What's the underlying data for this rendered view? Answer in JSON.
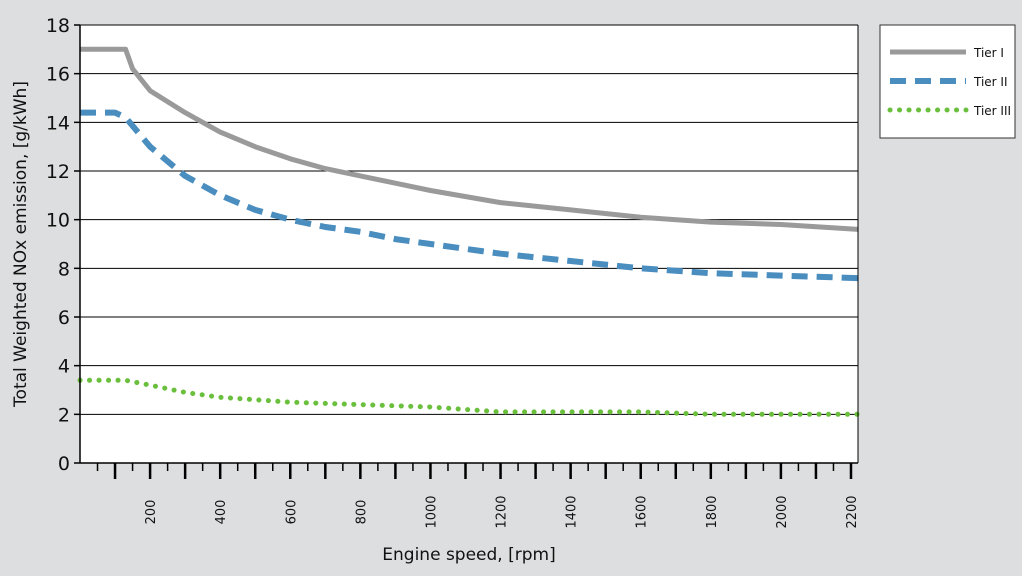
{
  "chart_data": {
    "type": "line",
    "title": "",
    "xlabel": "Engine speed,  [rpm]",
    "ylabel": "Total Weighted NOx emission, [g/kWh]",
    "xlim": [
      0,
      2220
    ],
    "ylim": [
      0,
      18
    ],
    "xticks": [
      200,
      400,
      600,
      800,
      1000,
      1200,
      1400,
      1600,
      1800,
      2000,
      2200
    ],
    "yticks": [
      0,
      2,
      4,
      6,
      8,
      10,
      12,
      14,
      16,
      18
    ],
    "grid": "horizontal",
    "legend_position": "right",
    "series": [
      {
        "name": "Tier  I",
        "color": "#9a9a9a",
        "style": "solid",
        "x": [
          0,
          130,
          150,
          200,
          300,
          400,
          500,
          600,
          700,
          800,
          900,
          1000,
          1200,
          1400,
          1600,
          1800,
          2000,
          2220
        ],
        "y": [
          17.0,
          17.0,
          16.2,
          15.3,
          14.4,
          13.6,
          13.0,
          12.5,
          12.1,
          11.8,
          11.5,
          11.2,
          10.7,
          10.4,
          10.1,
          9.9,
          9.8,
          9.6
        ]
      },
      {
        "name": "Tier II",
        "color": "#4a8dbf",
        "style": "dashed",
        "x": [
          0,
          100,
          130,
          200,
          300,
          400,
          500,
          600,
          700,
          800,
          900,
          1000,
          1200,
          1400,
          1600,
          1800,
          2000,
          2220
        ],
        "y": [
          14.4,
          14.4,
          14.2,
          13.0,
          11.8,
          11.0,
          10.4,
          10.0,
          9.7,
          9.5,
          9.2,
          9.0,
          8.6,
          8.3,
          8.0,
          7.8,
          7.7,
          7.6
        ]
      },
      {
        "name": "Tier III",
        "color": "#6abf3c",
        "style": "dotted",
        "x": [
          0,
          100,
          130,
          200,
          300,
          400,
          500,
          600,
          800,
          1000,
          1200,
          1400,
          1600,
          1800,
          2000,
          2220
        ],
        "y": [
          3.4,
          3.4,
          3.4,
          3.2,
          2.9,
          2.7,
          2.6,
          2.5,
          2.4,
          2.3,
          2.1,
          2.1,
          2.1,
          2.0,
          2.0,
          2.0
        ]
      }
    ]
  }
}
